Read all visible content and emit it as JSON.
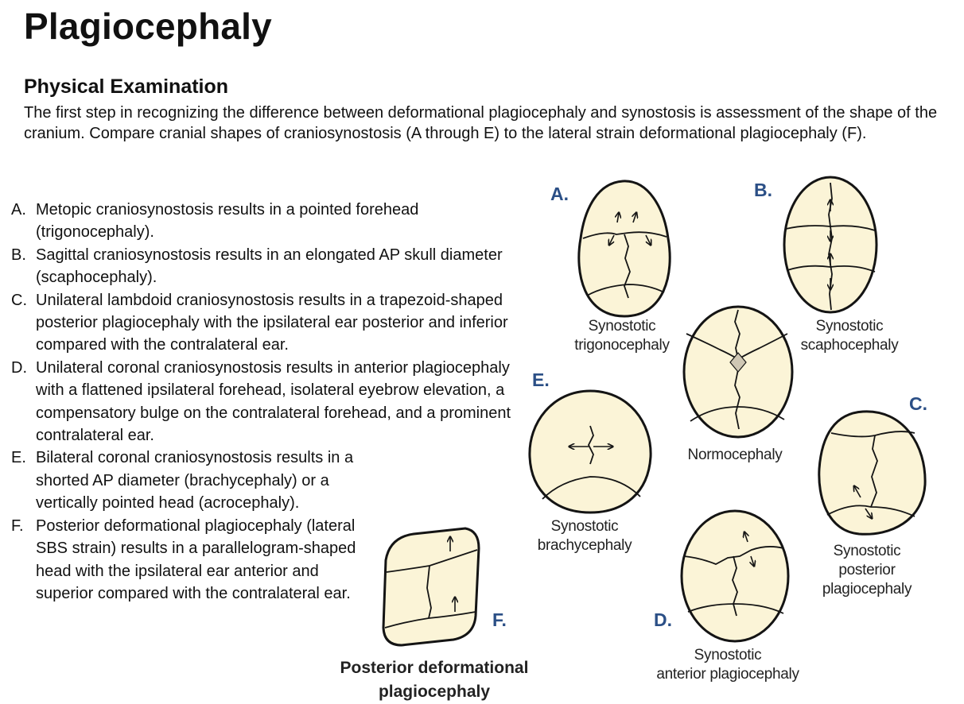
{
  "header": {
    "title": "Plagiocephaly",
    "subtitle": "Physical Examination",
    "intro": "The first step in recognizing the difference between deformational plagiocephaly and synostosis is assessment of the shape of the cranium. Compare cranial shapes of craniosynostosis (A through E) to the lateral strain deformational plagiocephaly (F)."
  },
  "list": [
    {
      "letter": "A.",
      "text": "Metopic craniosynostosis results in a pointed forehead (trigonocephaly)."
    },
    {
      "letter": "B.",
      "text": "Sagittal craniosynostosis results in an elongated AP skull diameter (scaphocephaly)."
    },
    {
      "letter": "C.",
      "text": "Unilateral lambdoid craniosynostosis results in a trapezoid-shaped posterior plagiocephaly with the ipsilateral ear posterior and inferior compared with the contralateral ear."
    },
    {
      "letter": "D.",
      "text": "Unilateral coronal craniosynostosis results in anterior plagiocephaly with a flattened ipsilateral forehead, isolateral eyebrow elevation, a compensatory bulge on the contralateral forehead, and a prominent contralateral ear."
    },
    {
      "letter": "E.",
      "text": "Bilateral coronal craniosynostosis results in a shorted AP diameter (brachycephaly) or a vertically pointed head (acrocephaly)."
    },
    {
      "letter": "F.",
      "text": "Posterior deformational plagiocephaly (lateral SBS strain) results in a parallelogram-shaped head with the ipsilateral ear anterior and superior compared with the contralateral ear."
    }
  ],
  "figure": {
    "letters": {
      "a": "A.",
      "b": "B.",
      "c": "C.",
      "d": "D.",
      "e": "E.",
      "f": "F."
    },
    "captions": {
      "a1": "Synostotic",
      "a2": "trigonocephaly",
      "b1": "Synostotic",
      "b2": "scaphocephaly",
      "c1": "Synostotic",
      "c2": "posterior",
      "c3": "plagiocephaly",
      "d1": "Synostotic",
      "d2": "anterior plagiocephaly",
      "e1": "Synostotic",
      "e2": "brachycephaly",
      "f1": "Posterior deformational",
      "f2": "plagiocephaly",
      "n": "Normocephaly"
    },
    "colors": {
      "skull_fill": "#fbf4d7",
      "letter_color": "#2b4f86"
    }
  }
}
